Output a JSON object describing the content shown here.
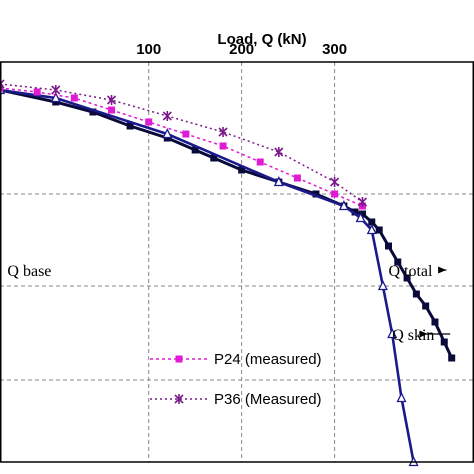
{
  "chart_data": {
    "type": "line",
    "title": "",
    "xlabel": "Load,  Q  (kN)",
    "ylabel": "",
    "xlim": [
      -60,
      450
    ],
    "ylim": [
      0,
      1
    ],
    "x_ticks": [
      100,
      200,
      300
    ],
    "x_tick_labels": [
      "100",
      "200",
      "300"
    ],
    "x_axis_position": "top",
    "grid": true,
    "legend_position": "bottom-center",
    "series": [
      {
        "name": "",
        "role": "Q total (measured, dark)",
        "color": "#0a0a3a",
        "marker": "square",
        "x": [
          -60,
          0,
          40,
          80,
          120,
          150,
          170,
          200,
          240,
          280,
          310,
          322,
          330,
          340,
          348,
          358,
          368,
          378,
          388,
          398,
          408,
          418,
          426
        ],
        "y": [
          0.07,
          0.1,
          0.125,
          0.16,
          0.19,
          0.22,
          0.24,
          0.27,
          0.3,
          0.33,
          0.36,
          0.375,
          0.38,
          0.4,
          0.42,
          0.46,
          0.5,
          0.54,
          0.58,
          0.61,
          0.65,
          0.7,
          0.74
        ]
      },
      {
        "name": "",
        "role": "Q skin (blue)",
        "color": "#1a1a8c",
        "marker": "triangle",
        "x": [
          -60,
          0,
          120,
          240,
          310,
          328,
          340,
          352,
          362,
          372,
          385
        ],
        "y": [
          0.07,
          0.09,
          0.18,
          0.3,
          0.36,
          0.39,
          0.42,
          0.56,
          0.68,
          0.84,
          1.0
        ]
      },
      {
        "name": "P24 (measured)",
        "color": "#e01bd4",
        "marker": "square",
        "x": [
          -60,
          -20,
          20,
          60,
          100,
          140,
          180,
          220,
          260,
          300,
          330
        ],
        "y": [
          0.065,
          0.075,
          0.09,
          0.12,
          0.15,
          0.18,
          0.21,
          0.25,
          0.29,
          0.33,
          0.36
        ]
      },
      {
        "name": "P36 (Measured)",
        "color": "#7a1a8a",
        "marker": "star",
        "x": [
          -60,
          0,
          60,
          120,
          180,
          240,
          300,
          330
        ],
        "y": [
          0.055,
          0.07,
          0.095,
          0.135,
          0.175,
          0.225,
          0.3,
          0.35
        ]
      }
    ],
    "annotations": [
      {
        "text": "Q base",
        "x": -52,
        "y": 0.52
      },
      {
        "text": "Q total",
        "x": 358,
        "y": 0.52
      },
      {
        "text": "Q skin",
        "x": 362,
        "y": 0.68
      }
    ]
  }
}
